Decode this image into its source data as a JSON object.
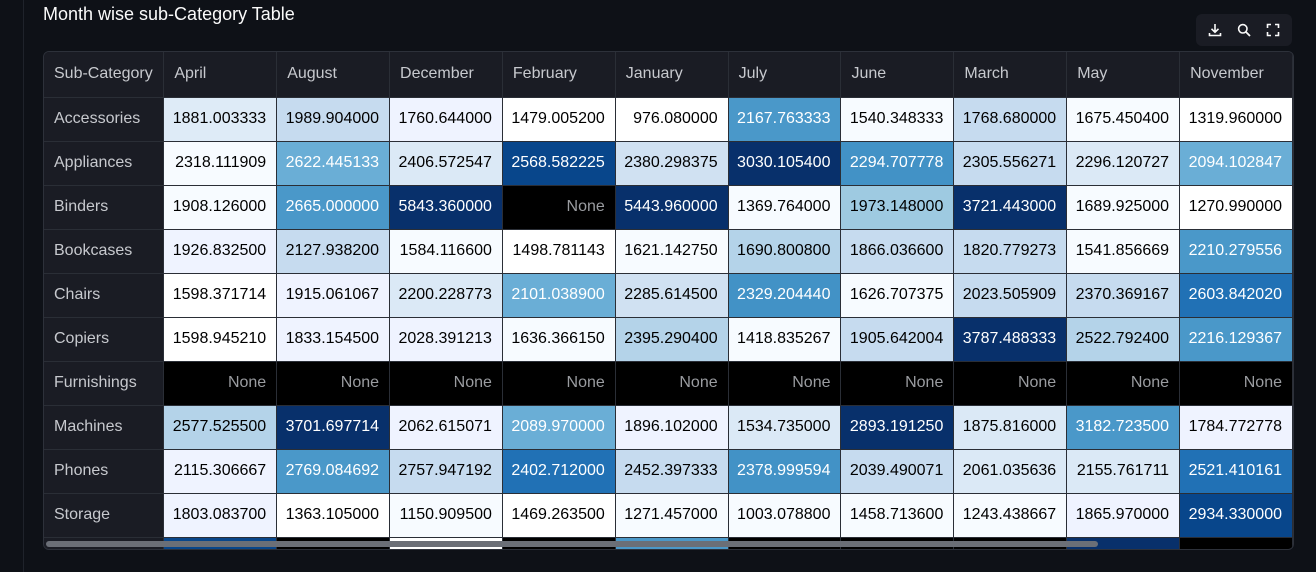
{
  "title": "Month wise sub-Category Table",
  "toolbar": {
    "icons": [
      "download-icon",
      "search-icon",
      "fullscreen-icon"
    ]
  },
  "table": {
    "index_header": "Sub-Category",
    "columns": [
      "April",
      "August",
      "December",
      "February",
      "January",
      "July",
      "June",
      "March",
      "May",
      "November"
    ],
    "rows": [
      {
        "label": "Accessories",
        "cells": [
          {
            "v": "1881.003333",
            "bg": "#deebf7",
            "fg": "#000000"
          },
          {
            "v": "1989.904000",
            "bg": "#c6dbef",
            "fg": "#000000"
          },
          {
            "v": "1760.644000",
            "bg": "#eff3ff",
            "fg": "#000000"
          },
          {
            "v": "1479.005200",
            "bg": "#ffffff",
            "fg": "#000000"
          },
          {
            "v": "976.080000",
            "bg": "#ffffff",
            "fg": "#000000"
          },
          {
            "v": "2167.763333",
            "bg": "#4a98c9",
            "fg": "#ffffff"
          },
          {
            "v": "1540.348333",
            "bg": "#f7fbff",
            "fg": "#000000"
          },
          {
            "v": "1768.680000",
            "bg": "#c6dbef",
            "fg": "#000000"
          },
          {
            "v": "1675.450400",
            "bg": "#f7fbff",
            "fg": "#000000"
          },
          {
            "v": "1319.960000",
            "bg": "#ffffff",
            "fg": "#000000"
          }
        ]
      },
      {
        "label": "Appliances",
        "cells": [
          {
            "v": "2318.111909",
            "bg": "#f7fbff",
            "fg": "#000000"
          },
          {
            "v": "2622.445133",
            "bg": "#6aaed6",
            "fg": "#ffffff"
          },
          {
            "v": "2406.572547",
            "bg": "#dbe9f6",
            "fg": "#000000"
          },
          {
            "v": "2568.582225",
            "bg": "#08468b",
            "fg": "#ffffff"
          },
          {
            "v": "2380.298375",
            "bg": "#d0e1f2",
            "fg": "#000000"
          },
          {
            "v": "3030.105400",
            "bg": "#08306b",
            "fg": "#ffffff"
          },
          {
            "v": "2294.707778",
            "bg": "#4292c6",
            "fg": "#ffffff"
          },
          {
            "v": "2305.556271",
            "bg": "#c6dbef",
            "fg": "#000000"
          },
          {
            "v": "2296.120727",
            "bg": "#dbe9f6",
            "fg": "#000000"
          },
          {
            "v": "2094.102847",
            "bg": "#6aaed6",
            "fg": "#ffffff"
          }
        ]
      },
      {
        "label": "Binders",
        "cells": [
          {
            "v": "1908.126000",
            "bg": "#f7fbff",
            "fg": "#000000"
          },
          {
            "v": "2665.000000",
            "bg": "#4a98c9",
            "fg": "#ffffff"
          },
          {
            "v": "5843.360000",
            "bg": "#08306b",
            "fg": "#ffffff"
          },
          {
            "v": "None",
            "bg": "#000000",
            "fg": "#9a9ca0"
          },
          {
            "v": "5443.960000",
            "bg": "#08306b",
            "fg": "#ffffff"
          },
          {
            "v": "1369.764000",
            "bg": "#f7fbff",
            "fg": "#000000"
          },
          {
            "v": "1973.148000",
            "bg": "#9ecae1",
            "fg": "#000000"
          },
          {
            "v": "3721.443000",
            "bg": "#08306b",
            "fg": "#ffffff"
          },
          {
            "v": "1689.925000",
            "bg": "#f7fbff",
            "fg": "#000000"
          },
          {
            "v": "1270.990000",
            "bg": "#ffffff",
            "fg": "#000000"
          }
        ]
      },
      {
        "label": "Bookcases",
        "cells": [
          {
            "v": "1926.832500",
            "bg": "#eff3ff",
            "fg": "#000000"
          },
          {
            "v": "2127.938200",
            "bg": "#c6dbef",
            "fg": "#000000"
          },
          {
            "v": "1584.116600",
            "bg": "#f7fbff",
            "fg": "#000000"
          },
          {
            "v": "1498.781143",
            "bg": "#ffffff",
            "fg": "#000000"
          },
          {
            "v": "1621.142750",
            "bg": "#f7fbff",
            "fg": "#000000"
          },
          {
            "v": "1690.800800",
            "bg": "#b4d3e9",
            "fg": "#000000"
          },
          {
            "v": "1866.036600",
            "bg": "#c6dbef",
            "fg": "#000000"
          },
          {
            "v": "1820.779273",
            "bg": "#c6dbef",
            "fg": "#000000"
          },
          {
            "v": "1541.856669",
            "bg": "#f7fbff",
            "fg": "#000000"
          },
          {
            "v": "2210.279556",
            "bg": "#4a98c9",
            "fg": "#ffffff"
          }
        ]
      },
      {
        "label": "Chairs",
        "cells": [
          {
            "v": "1598.371714",
            "bg": "#ffffff",
            "fg": "#000000"
          },
          {
            "v": "1915.061067",
            "bg": "#eff3ff",
            "fg": "#000000"
          },
          {
            "v": "2200.228773",
            "bg": "#dbe9f6",
            "fg": "#000000"
          },
          {
            "v": "2101.038900",
            "bg": "#6aaed6",
            "fg": "#ffffff"
          },
          {
            "v": "2285.614500",
            "bg": "#d0e1f2",
            "fg": "#000000"
          },
          {
            "v": "2329.204440",
            "bg": "#4292c6",
            "fg": "#ffffff"
          },
          {
            "v": "1626.707375",
            "bg": "#f7fbff",
            "fg": "#000000"
          },
          {
            "v": "2023.505909",
            "bg": "#c6dbef",
            "fg": "#000000"
          },
          {
            "v": "2370.369167",
            "bg": "#c6dbef",
            "fg": "#000000"
          },
          {
            "v": "2603.842020",
            "bg": "#2171b5",
            "fg": "#ffffff"
          }
        ]
      },
      {
        "label": "Copiers",
        "cells": [
          {
            "v": "1598.945210",
            "bg": "#ffffff",
            "fg": "#000000"
          },
          {
            "v": "1833.154500",
            "bg": "#eff3ff",
            "fg": "#000000"
          },
          {
            "v": "2028.391213",
            "bg": "#eff3ff",
            "fg": "#000000"
          },
          {
            "v": "1636.366150",
            "bg": "#f7fbff",
            "fg": "#000000"
          },
          {
            "v": "2395.290400",
            "bg": "#b4d3e9",
            "fg": "#000000"
          },
          {
            "v": "1418.835267",
            "bg": "#f7fbff",
            "fg": "#000000"
          },
          {
            "v": "1905.642004",
            "bg": "#c6dbef",
            "fg": "#000000"
          },
          {
            "v": "3787.488333",
            "bg": "#08306b",
            "fg": "#ffffff"
          },
          {
            "v": "2522.792400",
            "bg": "#b4d3e9",
            "fg": "#000000"
          },
          {
            "v": "2216.129367",
            "bg": "#4a98c9",
            "fg": "#ffffff"
          }
        ]
      },
      {
        "label": "Furnishings",
        "cells": [
          {
            "v": "None",
            "bg": "#000000",
            "fg": "#9a9ca0"
          },
          {
            "v": "None",
            "bg": "#000000",
            "fg": "#9a9ca0"
          },
          {
            "v": "None",
            "bg": "#000000",
            "fg": "#9a9ca0"
          },
          {
            "v": "None",
            "bg": "#000000",
            "fg": "#9a9ca0"
          },
          {
            "v": "None",
            "bg": "#000000",
            "fg": "#9a9ca0"
          },
          {
            "v": "None",
            "bg": "#000000",
            "fg": "#9a9ca0"
          },
          {
            "v": "None",
            "bg": "#000000",
            "fg": "#9a9ca0"
          },
          {
            "v": "None",
            "bg": "#000000",
            "fg": "#9a9ca0"
          },
          {
            "v": "None",
            "bg": "#000000",
            "fg": "#9a9ca0"
          },
          {
            "v": "None",
            "bg": "#000000",
            "fg": "#9a9ca0"
          }
        ]
      },
      {
        "label": "Machines",
        "cells": [
          {
            "v": "2577.525500",
            "bg": "#b4d3e9",
            "fg": "#000000"
          },
          {
            "v": "3701.697714",
            "bg": "#08306b",
            "fg": "#ffffff"
          },
          {
            "v": "2062.615071",
            "bg": "#eff3ff",
            "fg": "#000000"
          },
          {
            "v": "2089.970000",
            "bg": "#6aaed6",
            "fg": "#ffffff"
          },
          {
            "v": "1896.102000",
            "bg": "#eff3ff",
            "fg": "#000000"
          },
          {
            "v": "1534.735000",
            "bg": "#dbe9f6",
            "fg": "#000000"
          },
          {
            "v": "2893.191250",
            "bg": "#08306b",
            "fg": "#ffffff"
          },
          {
            "v": "1875.816000",
            "bg": "#dbe9f6",
            "fg": "#000000"
          },
          {
            "v": "3182.723500",
            "bg": "#4a98c9",
            "fg": "#ffffff"
          },
          {
            "v": "1784.772778",
            "bg": "#eff3ff",
            "fg": "#000000"
          }
        ]
      },
      {
        "label": "Phones",
        "cells": [
          {
            "v": "2115.306667",
            "bg": "#eff3ff",
            "fg": "#000000"
          },
          {
            "v": "2769.084692",
            "bg": "#4a98c9",
            "fg": "#ffffff"
          },
          {
            "v": "2757.947192",
            "bg": "#c6dbef",
            "fg": "#000000"
          },
          {
            "v": "2402.712000",
            "bg": "#2171b5",
            "fg": "#ffffff"
          },
          {
            "v": "2452.397333",
            "bg": "#c6dbef",
            "fg": "#000000"
          },
          {
            "v": "2378.999594",
            "bg": "#4292c6",
            "fg": "#ffffff"
          },
          {
            "v": "2039.490071",
            "bg": "#c6dbef",
            "fg": "#000000"
          },
          {
            "v": "2061.035636",
            "bg": "#dbe9f6",
            "fg": "#000000"
          },
          {
            "v": "2155.761711",
            "bg": "#dbe9f6",
            "fg": "#000000"
          },
          {
            "v": "2521.410161",
            "bg": "#2171b5",
            "fg": "#ffffff"
          }
        ]
      },
      {
        "label": "Storage",
        "cells": [
          {
            "v": "1803.083700",
            "bg": "#eff3ff",
            "fg": "#000000"
          },
          {
            "v": "1363.105000",
            "bg": "#ffffff",
            "fg": "#000000"
          },
          {
            "v": "1150.909500",
            "bg": "#f7fbff",
            "fg": "#000000"
          },
          {
            "v": "1469.263500",
            "bg": "#ffffff",
            "fg": "#000000"
          },
          {
            "v": "1271.457000",
            "bg": "#f7fbff",
            "fg": "#000000"
          },
          {
            "v": "1003.078800",
            "bg": "#f7fbff",
            "fg": "#000000"
          },
          {
            "v": "1458.713600",
            "bg": "#f7fbff",
            "fg": "#000000"
          },
          {
            "v": "1243.438667",
            "bg": "#f7fbff",
            "fg": "#000000"
          },
          {
            "v": "1865.970000",
            "bg": "#eff3ff",
            "fg": "#000000"
          },
          {
            "v": "2934.330000",
            "bg": "#08468b",
            "fg": "#ffffff"
          }
        ]
      },
      {
        "label": "",
        "cells": [
          {
            "v": "",
            "bg": "#08468b",
            "fg": "#ffffff"
          },
          {
            "v": "",
            "bg": "#000000",
            "fg": "#9a9ca0"
          },
          {
            "v": "",
            "bg": "#ffffff",
            "fg": "#000000"
          },
          {
            "v": "",
            "bg": "#000000",
            "fg": "#9a9ca0"
          },
          {
            "v": "",
            "bg": "#4a98c9",
            "fg": "#ffffff"
          },
          {
            "v": "",
            "bg": "#000000",
            "fg": "#9a9ca0"
          },
          {
            "v": "",
            "bg": "#000000",
            "fg": "#9a9ca0"
          },
          {
            "v": "",
            "bg": "#000000",
            "fg": "#9a9ca0"
          },
          {
            "v": "",
            "bg": "#08306b",
            "fg": "#ffffff"
          },
          {
            "v": "",
            "bg": "#000000",
            "fg": "#9a9ca0"
          }
        ]
      }
    ]
  }
}
